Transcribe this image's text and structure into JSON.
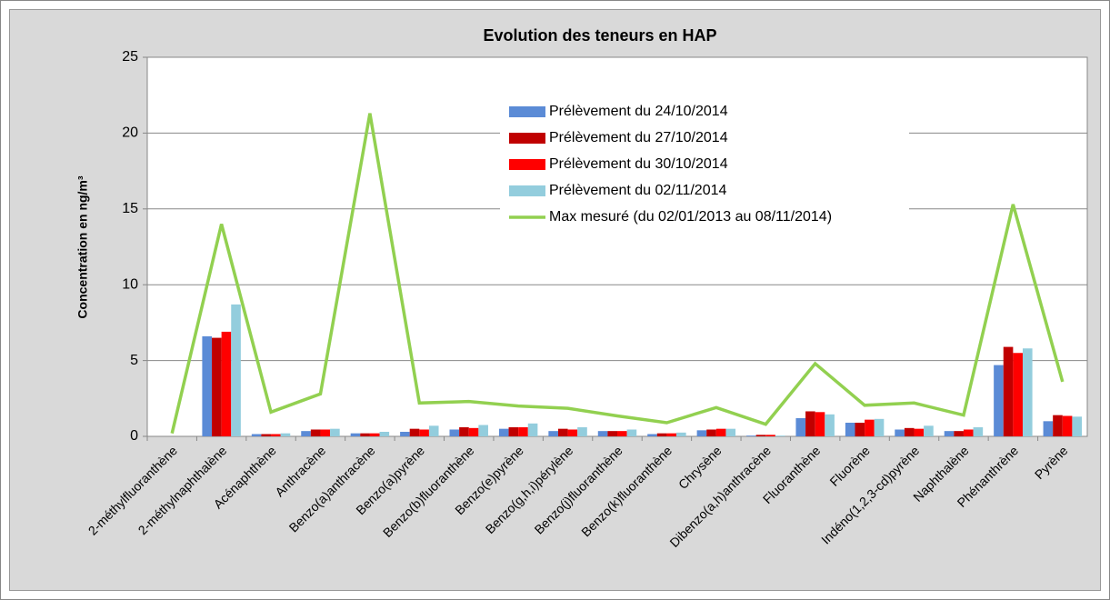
{
  "chart_data": {
    "type": "bar",
    "title": "Evolution des teneurs en HAP",
    "y_label": "Concentration en ng/m³",
    "categories": [
      "2-méthylfluoranthène",
      "2-méthylnaphthalène",
      "Acénaphthène",
      "Anthracène",
      "Benzo(a)anthracène",
      "Benzo(a)pyrène",
      "Benzo(b)fluoranthène",
      "Benzo(e)pyrène",
      "Benzo(g,h,i)pérylène",
      "Benzo(j)fluoranthène",
      "Benzo(k)fluoranthène",
      "Chrysène",
      "Dibenzo(a,h)anthracène",
      "Fluoranthène",
      "Fluorène",
      "Indéno(1,2,3-cd)pyrène",
      "Naphthalène",
      "Phénanthrène",
      "Pyrène"
    ],
    "series": [
      {
        "name": "Prélèvement du 24/10/2014",
        "color": "#5b8bd6",
        "values": [
          null,
          6.6,
          0.15,
          0.35,
          0.2,
          0.3,
          0.45,
          0.5,
          0.35,
          0.35,
          0.15,
          0.4,
          0.05,
          1.2,
          0.9,
          0.45,
          0.35,
          4.7,
          1.0
        ]
      },
      {
        "name": "Prélèvement du 27/10/2014",
        "color": "#c00000",
        "values": [
          null,
          6.5,
          0.15,
          0.45,
          0.2,
          0.5,
          0.6,
          0.6,
          0.5,
          0.35,
          0.2,
          0.45,
          0.1,
          1.65,
          0.9,
          0.55,
          0.35,
          5.9,
          1.4
        ]
      },
      {
        "name": "Prélèvement du 30/10/2014",
        "color": "#ff0000",
        "values": [
          null,
          6.9,
          0.15,
          0.45,
          0.2,
          0.45,
          0.55,
          0.6,
          0.45,
          0.35,
          0.2,
          0.5,
          0.1,
          1.6,
          1.1,
          0.5,
          0.45,
          5.5,
          1.35
        ]
      },
      {
        "name": "Prélèvement du 02/11/2014",
        "color": "#93cddd",
        "values": [
          null,
          8.7,
          0.2,
          0.5,
          0.3,
          0.7,
          0.75,
          0.85,
          0.6,
          0.45,
          0.25,
          0.5,
          0.05,
          1.45,
          1.15,
          0.7,
          0.6,
          5.8,
          1.3
        ]
      },
      {
        "name": "Max mesuré (du 02/01/2013 au 08/11/2014)",
        "color": "#92d050",
        "type": "line",
        "values": [
          0.2,
          14.0,
          1.6,
          2.8,
          21.3,
          2.2,
          2.3,
          2.0,
          1.85,
          1.35,
          0.9,
          1.9,
          0.8,
          4.8,
          2.05,
          2.2,
          1.4,
          15.3,
          3.6
        ]
      }
    ],
    "ylim": [
      0,
      25
    ],
    "yticks": [
      0,
      5,
      10,
      15,
      20,
      25
    ],
    "grid": true
  }
}
